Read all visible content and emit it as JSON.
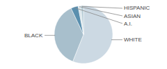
{
  "chart_data": {
    "type": "pie",
    "categories": [
      "WHITE",
      "BLACK",
      "A.I.",
      "ASIAN",
      "HISPANIC"
    ],
    "values": [
      56,
      37,
      4,
      1.5,
      1.5
    ],
    "colors": [
      "#ccd9e3",
      "#a8bfcc",
      "#5a8fae",
      "#d8e4ea",
      "#b8cdd6"
    ]
  }
}
